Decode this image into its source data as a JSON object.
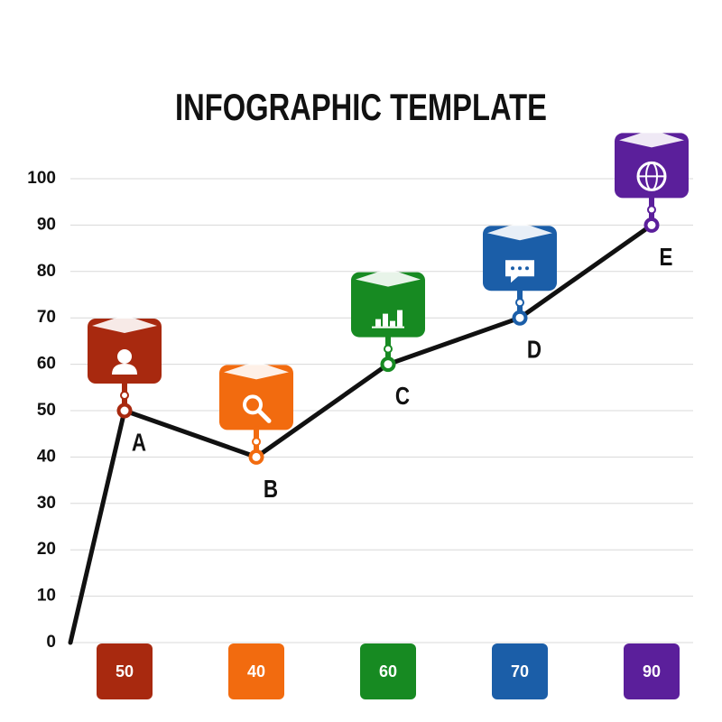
{
  "chart_data": {
    "type": "line",
    "title": "INFOGRAPHIC TEMPLATE",
    "categories": [
      "A",
      "B",
      "C",
      "D",
      "E"
    ],
    "values": [
      50,
      40,
      60,
      70,
      90
    ],
    "colors": [
      "#a8290f",
      "#f26b0f",
      "#178a22",
      "#1b5ea8",
      "#5b1f9b"
    ],
    "line_color": "#111111",
    "ylim": [
      0,
      100
    ],
    "yticks": [
      0,
      10,
      20,
      30,
      40,
      50,
      60,
      70,
      80,
      90,
      100
    ],
    "grid": true
  }
}
